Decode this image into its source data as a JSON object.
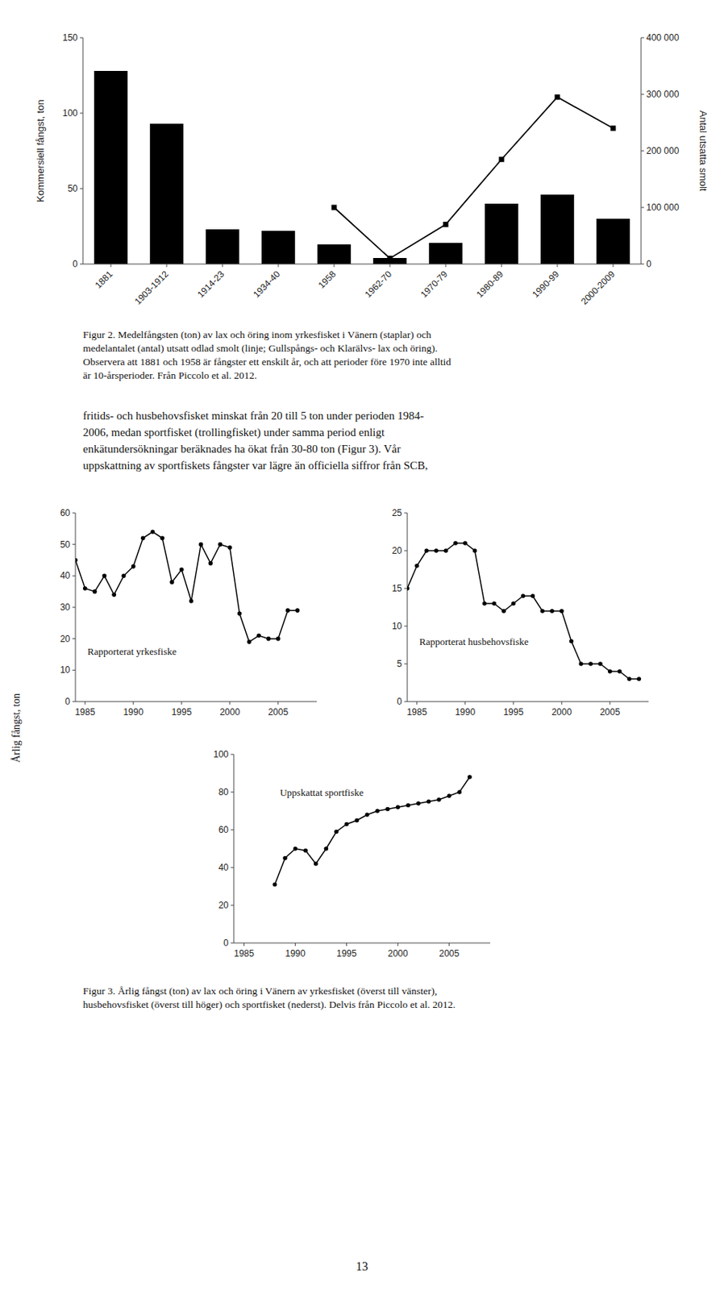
{
  "chart_data": [
    {
      "type": "bar",
      "categories": [
        "1881",
        "1903-1912",
        "1914-23",
        "1934-40",
        "1958",
        "1962-70",
        "1970-79",
        "1980-89",
        "1990-99",
        "2000-2009"
      ],
      "series": [
        {
          "type": "bar",
          "color": "black",
          "values": [
            128,
            93,
            23,
            22,
            13,
            4,
            14,
            40,
            46,
            30
          ]
        },
        {
          "type": "line",
          "axis": "y2",
          "color": "black",
          "marker": "square",
          "values": [
            null,
            null,
            null,
            null,
            100000,
            10000,
            70000,
            185000,
            295000,
            240000
          ]
        }
      ],
      "ylabel": "Kommersiell fångst, ton",
      "y2label": "Antal utsatta smolt",
      "ylim": [
        0,
        150
      ],
      "yticks": [
        0,
        50,
        100,
        150
      ],
      "y2lim": [
        0,
        400000
      ],
      "y2ticks": [
        0,
        {
          "value": 100000,
          "label": "100 000"
        },
        {
          "value": 200000,
          "label": "200 000"
        },
        {
          "value": 300000,
          "label": "300 000"
        },
        {
          "value": 400000,
          "label": "400 000"
        }
      ],
      "grid": false
    },
    {
      "type": "line",
      "x": [
        1984,
        1985,
        1986,
        1987,
        1988,
        1989,
        1990,
        1991,
        1992,
        1993,
        1994,
        1995,
        1996,
        1997,
        1998,
        1999,
        2000,
        2001,
        2002,
        2003,
        2004,
        2005,
        2006,
        2007
      ],
      "values": [
        45,
        36,
        35,
        40,
        34,
        40,
        43,
        52,
        54,
        52,
        38,
        42,
        32,
        50,
        44,
        50,
        49,
        28,
        19,
        21,
        20,
        20,
        29,
        29
      ],
      "color": "black",
      "marker": "circle",
      "annotations": [
        "Rapporterat yrkesfiske"
      ],
      "xlim": [
        1984,
        2009
      ],
      "xticks": [
        1985,
        1990,
        1995,
        2000,
        2005
      ],
      "ylim": [
        0,
        60
      ],
      "yticks": [
        0,
        10,
        20,
        30,
        40,
        50,
        60
      ],
      "grid": false
    },
    {
      "type": "line",
      "x": [
        1984,
        1985,
        1986,
        1987,
        1988,
        1989,
        1990,
        1991,
        1992,
        1993,
        1994,
        1995,
        1996,
        1997,
        1998,
        1999,
        2000,
        2001,
        2002,
        2003,
        2004,
        2005,
        2006,
        2007,
        2008
      ],
      "values": [
        15,
        18,
        20,
        20,
        20,
        21,
        21,
        20,
        13,
        13,
        12,
        13,
        14,
        14,
        12,
        12,
        12,
        8,
        5,
        5,
        5,
        4,
        4,
        3,
        3
      ],
      "color": "black",
      "marker": "circle",
      "annotations": [
        "Rapporterat husbehovsfiske"
      ],
      "xlim": [
        1984,
        2009
      ],
      "xticks": [
        1985,
        1990,
        1995,
        2000,
        2005
      ],
      "ylim": [
        0,
        25
      ],
      "yticks": [
        0,
        5,
        10,
        15,
        20,
        25
      ],
      "grid": false
    },
    {
      "type": "line",
      "x": [
        1988,
        1989,
        1990,
        1991,
        1992,
        1993,
        1994,
        1995,
        1996,
        1997,
        1998,
        1999,
        2000,
        2001,
        2002,
        2003,
        2004,
        2005,
        2006,
        2007
      ],
      "values": [
        31,
        45,
        50,
        49,
        42,
        50,
        59,
        63,
        65,
        68,
        70,
        71,
        72,
        73,
        74,
        75,
        76,
        78,
        80,
        88
      ],
      "color": "black",
      "marker": "circle",
      "annotations": [
        "Uppskattat sportfiske"
      ],
      "xlim": [
        1984,
        2009
      ],
      "xticks": [
        1985,
        1990,
        1995,
        2000,
        2005
      ],
      "ylim": [
        0,
        100
      ],
      "yticks": [
        0,
        20,
        40,
        60,
        80,
        100
      ],
      "grid": false
    }
  ],
  "page_text": {
    "figure_2_caption": [
      "Figur 2. Medelfångsten (ton) av lax och öring inom yrkesfisket i Vänern (staplar) och",
      "medelantalet (antal) utsatt odlad smolt (linje; Gullspångs- och Klarälvs- lax och öring).",
      "Observera att 1881 och 1958 är fångster ett enskilt år, och att perioder före 1970 inte alltid",
      "är 10-årsperioder. Från Piccolo et al. 2012."
    ],
    "body_text": [
      "fritids- och husbehovsfisket minskat från 20 till 5 ton under perioden 1984-",
      "2006, medan sportfisket (trollingfisket) under samma period enligt",
      "enkätundersökningar beräknades ha ökat från 30-80 ton (Figur 3). Vår",
      "uppskattning av sportfiskets fångster var lägre än officiella siffror från SCB,"
    ],
    "figure_3_caption": [
      "Figur 3. Årlig fångst (ton) av lax och öring i Vänern av yrkesfisket (överst till vänster),",
      "husbehovsfisket (överst till höger) och sportfisket (nederst). Delvis från Piccolo et al. 2012."
    ],
    "shared_ylabel": "Årlig fångst, ton",
    "page_number": "13"
  }
}
